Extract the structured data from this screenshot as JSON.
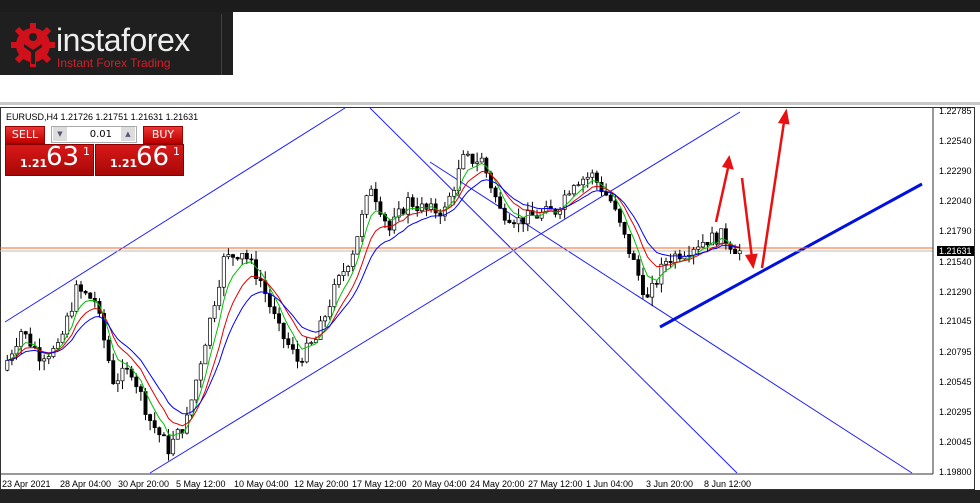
{
  "brand": {
    "name": "instaforex",
    "tagline": "Instant Forex Trading",
    "accent": "#d0202a"
  },
  "header": {
    "symbol_line": "EURUSD,H4  1.21726 1.21751 1.21631 1.21631"
  },
  "trade_panel": {
    "sell_label": "SELL",
    "buy_label": "BUY",
    "lot": "0.01",
    "sell_price": {
      "prefix": "1.21",
      "big": "63",
      "sup": "1"
    },
    "buy_price": {
      "prefix": "1.21",
      "big": "66",
      "sup": "1"
    }
  },
  "chart_data": {
    "type": "candlestick",
    "symbol": "EURUSD",
    "timeframe": "H4",
    "ylim": [
      1.198,
      1.22785
    ],
    "y_ticks": [
      "1.22785",
      "1.22540",
      "1.22290",
      "1.22040",
      "1.21790",
      "1.21540",
      "1.21290",
      "1.21045",
      "1.20795",
      "1.20545",
      "1.20295",
      "1.20045",
      "1.19800"
    ],
    "x_ticks": [
      "23 Apr 2021",
      "28 Apr 04:00",
      "30 Apr 20:00",
      "5 May 12:00",
      "10 May 04:00",
      "12 May 20:00",
      "17 May 12:00",
      "20 May 04:00",
      "24 May 20:00",
      "27 May 12:00",
      "1 Jun 04:00",
      "3 Jun 20:00",
      "8 Jun 12:00"
    ],
    "current_price": "1.21631",
    "closes": [
      1.2065,
      1.2098,
      1.2078,
      1.2082,
      1.2131,
      1.2123,
      1.2057,
      1.2065,
      1.2024,
      1.2,
      1.2024,
      1.209,
      1.2156,
      1.2164,
      1.2139,
      1.2098,
      1.2073,
      1.209,
      1.2131,
      1.2164,
      1.2218,
      1.2181,
      1.2205,
      1.2197,
      1.2197,
      1.2239,
      1.2239,
      1.2197,
      1.2189,
      1.2193,
      1.2197,
      1.2222,
      1.2226,
      1.2205,
      1.2164,
      1.2123,
      1.2156,
      1.2164,
      1.2172,
      1.2176,
      1.2163
    ],
    "colors": {
      "bull": "#ffffff",
      "bear": "#000000",
      "ma_fast": "#00c000",
      "ma_mid": "#e00000",
      "ma_slow": "#0000ff",
      "price_line": "#ff6020",
      "channel": "#2020ff",
      "trendline": "#0010e0",
      "arrows": "#e81010"
    }
  }
}
